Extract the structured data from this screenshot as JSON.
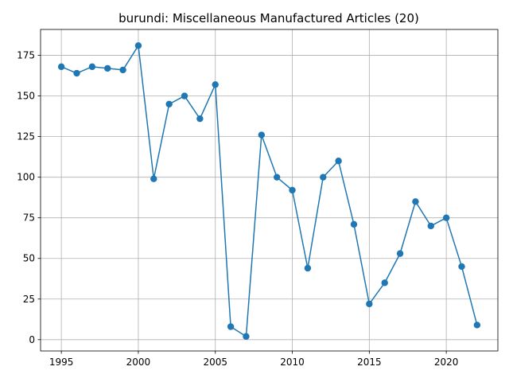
{
  "chart_data": {
    "type": "line",
    "title": "burundi: Miscellaneous Manufactured Articles (20)",
    "xlabel": "",
    "ylabel": "",
    "x": [
      1995,
      1996,
      1997,
      1998,
      1999,
      2000,
      2001,
      2002,
      2003,
      2004,
      2005,
      2006,
      2007,
      2008,
      2009,
      2010,
      2011,
      2012,
      2013,
      2014,
      2015,
      2016,
      2017,
      2018,
      2019,
      2020,
      2021,
      2022
    ],
    "series": [
      {
        "values": [
          168,
          164,
          168,
          167,
          166,
          181,
          99,
          145,
          150,
          136,
          157,
          8,
          2,
          126,
          100,
          92,
          44,
          100,
          110,
          71,
          22,
          35,
          53,
          85,
          70,
          75,
          45,
          9
        ]
      }
    ],
    "xlim": [
      1993.65,
      2023.35
    ],
    "ylim": [
      -6.95,
      190.95
    ],
    "xticks": [
      1995,
      2000,
      2005,
      2010,
      2015,
      2020
    ],
    "yticks": [
      0,
      25,
      50,
      75,
      100,
      125,
      150,
      175
    ],
    "grid": true,
    "marker": "circle",
    "color": "#1f77b4"
  }
}
